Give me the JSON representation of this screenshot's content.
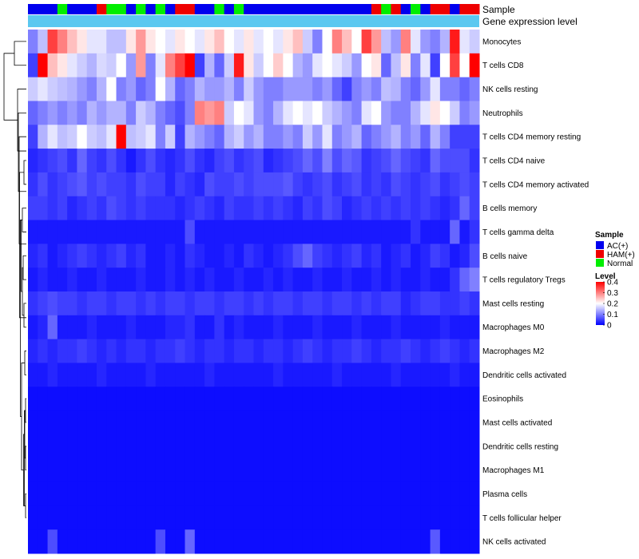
{
  "chart_data": {
    "type": "heatmap",
    "annotation_titles": {
      "sample": "Sample",
      "gene": "Gene expression level"
    },
    "rows": [
      "Monocytes",
      "T cells CD8",
      "NK cells resting",
      "Neutrophils",
      "T cells CD4 memory resting",
      "T cells CD4 naive",
      "T cells CD4 memory activated",
      "B cells memory",
      "T cells gamma delta",
      "B cells naive",
      "T cells regulatory  Tregs",
      "Mast cells resting",
      "Macrophages M0",
      "Macrophages M2",
      "Dendritic cells activated",
      "Eosinophils",
      "Mast cells activated",
      "Dendritic cells resting",
      "Macrophages M1",
      "Plasma cells",
      "T cells follicular helper",
      "NK cells activated"
    ],
    "sample_groups": [
      "AC",
      "AC",
      "AC",
      "Normal",
      "AC",
      "AC",
      "AC",
      "HAM",
      "Normal",
      "Normal",
      "AC",
      "Normal",
      "AC",
      "Normal",
      "AC",
      "HAM",
      "HAM",
      "AC",
      "AC",
      "Normal",
      "AC",
      "Normal",
      "AC",
      "AC",
      "AC",
      "AC",
      "AC",
      "AC",
      "AC",
      "AC",
      "AC",
      "AC",
      "AC",
      "AC",
      "AC",
      "HAM",
      "Normal",
      "HAM",
      "AC",
      "Normal",
      "AC",
      "HAM",
      "HAM",
      "AC",
      "HAM",
      "HAM"
    ],
    "values": [
      [
        0.1,
        0.15,
        0.35,
        0.3,
        0.25,
        0.22,
        0.18,
        0.18,
        0.15,
        0.15,
        0.22,
        0.28,
        0.22,
        0.2,
        0.18,
        0.22,
        0.2,
        0.18,
        0.22,
        0.25,
        0.2,
        0.18,
        0.22,
        0.18,
        0.2,
        0.18,
        0.22,
        0.25,
        0.16,
        0.1,
        0.2,
        0.3,
        0.25,
        0.2,
        0.35,
        0.28,
        0.15,
        0.12,
        0.3,
        0.18,
        0.12,
        0.1,
        0.14,
        0.38,
        0.18,
        0.16
      ],
      [
        0.05,
        0.4,
        0.25,
        0.22,
        0.18,
        0.16,
        0.14,
        0.17,
        0.16,
        0.2,
        0.12,
        0.28,
        0.1,
        0.18,
        0.3,
        0.35,
        0.4,
        0.05,
        0.14,
        0.08,
        0.16,
        0.38,
        0.22,
        0.16,
        0.2,
        0.24,
        0.2,
        0.14,
        0.12,
        0.18,
        0.2,
        0.18,
        0.16,
        0.12,
        0.2,
        0.22,
        0.08,
        0.15,
        0.22,
        0.1,
        0.18,
        0.05,
        0.2,
        0.35,
        0.2,
        0.4
      ],
      [
        0.16,
        0.18,
        0.16,
        0.15,
        0.14,
        0.12,
        0.1,
        0.14,
        0.2,
        0.1,
        0.12,
        0.08,
        0.1,
        0.2,
        0.14,
        0.08,
        0.1,
        0.14,
        0.12,
        0.12,
        0.14,
        0.1,
        0.16,
        0.12,
        0.1,
        0.1,
        0.12,
        0.12,
        0.12,
        0.1,
        0.12,
        0.08,
        0.05,
        0.1,
        0.12,
        0.1,
        0.15,
        0.14,
        0.1,
        0.08,
        0.12,
        0.18,
        0.1,
        0.1,
        0.08,
        0.1
      ],
      [
        0.08,
        0.1,
        0.12,
        0.1,
        0.12,
        0.1,
        0.14,
        0.12,
        0.14,
        0.14,
        0.1,
        0.16,
        0.14,
        0.1,
        0.08,
        0.06,
        0.1,
        0.3,
        0.28,
        0.3,
        0.16,
        0.2,
        0.18,
        0.12,
        0.1,
        0.14,
        0.18,
        0.2,
        0.18,
        0.2,
        0.16,
        0.14,
        0.12,
        0.1,
        0.18,
        0.2,
        0.12,
        0.1,
        0.1,
        0.14,
        0.18,
        0.22,
        0.2,
        0.16,
        0.1,
        0.12
      ],
      [
        0.05,
        0.14,
        0.18,
        0.15,
        0.16,
        0.2,
        0.16,
        0.15,
        0.18,
        0.4,
        0.15,
        0.16,
        0.18,
        0.1,
        0.16,
        0.05,
        0.14,
        0.12,
        0.1,
        0.08,
        0.14,
        0.16,
        0.12,
        0.14,
        0.1,
        0.1,
        0.12,
        0.1,
        0.16,
        0.12,
        0.18,
        0.1,
        0.12,
        0.14,
        0.08,
        0.1,
        0.12,
        0.14,
        0.1,
        0.12,
        0.08,
        0.14,
        0.1,
        0.05,
        0.05,
        0.05
      ],
      [
        0.03,
        0.04,
        0.05,
        0.06,
        0.04,
        0.08,
        0.05,
        0.04,
        0.06,
        0.04,
        0.02,
        0.04,
        0.06,
        0.04,
        0.03,
        0.04,
        0.06,
        0.04,
        0.03,
        0.05,
        0.06,
        0.04,
        0.05,
        0.06,
        0.03,
        0.04,
        0.05,
        0.06,
        0.08,
        0.06,
        0.1,
        0.06,
        0.08,
        0.07,
        0.04,
        0.05,
        0.06,
        0.08,
        0.06,
        0.05,
        0.04,
        0.08,
        0.06,
        0.06,
        0.06,
        0.04
      ],
      [
        0.04,
        0.06,
        0.04,
        0.05,
        0.06,
        0.07,
        0.05,
        0.06,
        0.05,
        0.05,
        0.04,
        0.06,
        0.05,
        0.05,
        0.03,
        0.05,
        0.04,
        0.03,
        0.06,
        0.05,
        0.05,
        0.06,
        0.05,
        0.06,
        0.06,
        0.06,
        0.07,
        0.05,
        0.04,
        0.05,
        0.06,
        0.04,
        0.05,
        0.06,
        0.04,
        0.05,
        0.04,
        0.06,
        0.05,
        0.04,
        0.05,
        0.06,
        0.04,
        0.05,
        0.06,
        0.05
      ],
      [
        0.05,
        0.05,
        0.04,
        0.05,
        0.03,
        0.04,
        0.05,
        0.04,
        0.06,
        0.05,
        0.04,
        0.05,
        0.04,
        0.04,
        0.04,
        0.03,
        0.04,
        0.05,
        0.04,
        0.03,
        0.05,
        0.04,
        0.04,
        0.05,
        0.04,
        0.05,
        0.04,
        0.03,
        0.05,
        0.04,
        0.06,
        0.05,
        0.03,
        0.04,
        0.05,
        0.04,
        0.05,
        0.04,
        0.05,
        0.04,
        0.05,
        0.04,
        0.03,
        0.04,
        0.08,
        0.05
      ],
      [
        0.02,
        0.02,
        0.02,
        0.02,
        0.02,
        0.02,
        0.02,
        0.02,
        0.02,
        0.02,
        0.02,
        0.02,
        0.02,
        0.02,
        0.02,
        0.02,
        0.06,
        0.02,
        0.02,
        0.02,
        0.02,
        0.02,
        0.02,
        0.02,
        0.02,
        0.02,
        0.02,
        0.02,
        0.02,
        0.02,
        0.02,
        0.02,
        0.02,
        0.02,
        0.02,
        0.02,
        0.02,
        0.02,
        0.02,
        0.04,
        0.02,
        0.02,
        0.02,
        0.08,
        0.02,
        0.04
      ],
      [
        0.03,
        0.04,
        0.02,
        0.03,
        0.04,
        0.05,
        0.04,
        0.03,
        0.04,
        0.05,
        0.03,
        0.04,
        0.02,
        0.02,
        0.03,
        0.02,
        0.04,
        0.03,
        0.02,
        0.02,
        0.03,
        0.02,
        0.04,
        0.03,
        0.02,
        0.03,
        0.04,
        0.06,
        0.08,
        0.05,
        0.04,
        0.03,
        0.04,
        0.05,
        0.03,
        0.04,
        0.02,
        0.03,
        0.04,
        0.02,
        0.03,
        0.05,
        0.04,
        0.02,
        0.03,
        0.06
      ],
      [
        0.02,
        0.03,
        0.02,
        0.02,
        0.03,
        0.02,
        0.02,
        0.03,
        0.02,
        0.02,
        0.02,
        0.03,
        0.02,
        0.02,
        0.03,
        0.02,
        0.03,
        0.02,
        0.03,
        0.02,
        0.02,
        0.03,
        0.02,
        0.02,
        0.03,
        0.02,
        0.03,
        0.02,
        0.02,
        0.03,
        0.02,
        0.02,
        0.03,
        0.02,
        0.02,
        0.03,
        0.02,
        0.03,
        0.02,
        0.02,
        0.03,
        0.02,
        0.02,
        0.04,
        0.08,
        0.1
      ],
      [
        0.04,
        0.05,
        0.06,
        0.05,
        0.05,
        0.04,
        0.05,
        0.05,
        0.04,
        0.05,
        0.05,
        0.04,
        0.05,
        0.04,
        0.05,
        0.05,
        0.04,
        0.05,
        0.05,
        0.04,
        0.05,
        0.05,
        0.04,
        0.05,
        0.04,
        0.05,
        0.05,
        0.04,
        0.05,
        0.05,
        0.04,
        0.05,
        0.05,
        0.04,
        0.05,
        0.04,
        0.05,
        0.05,
        0.03,
        0.04,
        0.05,
        0.05,
        0.04,
        0.04,
        0.05,
        0.04
      ],
      [
        0.02,
        0.03,
        0.08,
        0.02,
        0.02,
        0.02,
        0.03,
        0.02,
        0.02,
        0.02,
        0.03,
        0.02,
        0.02,
        0.02,
        0.03,
        0.03,
        0.04,
        0.02,
        0.02,
        0.04,
        0.02,
        0.03,
        0.02,
        0.02,
        0.02,
        0.03,
        0.02,
        0.02,
        0.02,
        0.03,
        0.02,
        0.02,
        0.02,
        0.03,
        0.02,
        0.02,
        0.02,
        0.03,
        0.02,
        0.02,
        0.02,
        0.02,
        0.03,
        0.02,
        0.02,
        0.02
      ],
      [
        0.03,
        0.04,
        0.03,
        0.04,
        0.04,
        0.05,
        0.04,
        0.03,
        0.04,
        0.03,
        0.04,
        0.04,
        0.03,
        0.04,
        0.04,
        0.05,
        0.04,
        0.03,
        0.04,
        0.04,
        0.03,
        0.04,
        0.04,
        0.03,
        0.04,
        0.04,
        0.03,
        0.04,
        0.05,
        0.04,
        0.03,
        0.04,
        0.04,
        0.05,
        0.04,
        0.03,
        0.04,
        0.04,
        0.05,
        0.04,
        0.03,
        0.04,
        0.05,
        0.04,
        0.03,
        0.04
      ],
      [
        0.02,
        0.02,
        0.03,
        0.02,
        0.02,
        0.02,
        0.02,
        0.03,
        0.02,
        0.02,
        0.02,
        0.02,
        0.03,
        0.02,
        0.02,
        0.02,
        0.02,
        0.02,
        0.03,
        0.02,
        0.02,
        0.02,
        0.02,
        0.02,
        0.02,
        0.03,
        0.02,
        0.02,
        0.02,
        0.02,
        0.02,
        0.03,
        0.02,
        0.02,
        0.02,
        0.02,
        0.02,
        0.03,
        0.02,
        0.02,
        0.02,
        0.02,
        0.02,
        0.03,
        0.02,
        0.02
      ],
      [
        0.01,
        0.01,
        0.01,
        0.01,
        0.01,
        0.01,
        0.01,
        0.01,
        0.01,
        0.01,
        0.01,
        0.01,
        0.01,
        0.01,
        0.01,
        0.01,
        0.01,
        0.01,
        0.01,
        0.01,
        0.01,
        0.01,
        0.01,
        0.01,
        0.01,
        0.01,
        0.01,
        0.01,
        0.01,
        0.01,
        0.01,
        0.01,
        0.01,
        0.01,
        0.01,
        0.01,
        0.01,
        0.01,
        0.01,
        0.01,
        0.01,
        0.01,
        0.01,
        0.01,
        0.01,
        0.01
      ],
      [
        0.01,
        0.01,
        0.01,
        0.01,
        0.01,
        0.01,
        0.01,
        0.01,
        0.01,
        0.01,
        0.01,
        0.01,
        0.01,
        0.01,
        0.01,
        0.01,
        0.01,
        0.01,
        0.01,
        0.01,
        0.01,
        0.01,
        0.01,
        0.01,
        0.01,
        0.01,
        0.01,
        0.01,
        0.01,
        0.01,
        0.01,
        0.01,
        0.01,
        0.01,
        0.01,
        0.01,
        0.01,
        0.01,
        0.01,
        0.01,
        0.01,
        0.01,
        0.01,
        0.01,
        0.01,
        0.01
      ],
      [
        0.01,
        0.01,
        0.01,
        0.01,
        0.01,
        0.01,
        0.01,
        0.01,
        0.01,
        0.01,
        0.01,
        0.01,
        0.01,
        0.01,
        0.01,
        0.01,
        0.01,
        0.01,
        0.01,
        0.01,
        0.01,
        0.01,
        0.01,
        0.01,
        0.01,
        0.01,
        0.01,
        0.01,
        0.01,
        0.01,
        0.01,
        0.01,
        0.01,
        0.01,
        0.01,
        0.01,
        0.01,
        0.01,
        0.01,
        0.01,
        0.01,
        0.01,
        0.01,
        0.01,
        0.01,
        0.01
      ],
      [
        0.01,
        0.01,
        0.01,
        0.01,
        0.01,
        0.01,
        0.01,
        0.01,
        0.01,
        0.01,
        0.01,
        0.01,
        0.01,
        0.01,
        0.01,
        0.01,
        0.01,
        0.01,
        0.01,
        0.01,
        0.01,
        0.01,
        0.01,
        0.01,
        0.01,
        0.01,
        0.01,
        0.01,
        0.01,
        0.01,
        0.01,
        0.01,
        0.01,
        0.01,
        0.01,
        0.01,
        0.01,
        0.01,
        0.01,
        0.01,
        0.01,
        0.01,
        0.01,
        0.01,
        0.01,
        0.01
      ],
      [
        0.01,
        0.01,
        0.01,
        0.01,
        0.01,
        0.01,
        0.01,
        0.01,
        0.01,
        0.01,
        0.01,
        0.01,
        0.01,
        0.01,
        0.01,
        0.01,
        0.01,
        0.01,
        0.01,
        0.01,
        0.01,
        0.01,
        0.01,
        0.01,
        0.01,
        0.01,
        0.01,
        0.01,
        0.01,
        0.01,
        0.01,
        0.01,
        0.01,
        0.01,
        0.01,
        0.01,
        0.01,
        0.01,
        0.01,
        0.01,
        0.01,
        0.01,
        0.01,
        0.01,
        0.01,
        0.01
      ],
      [
        0.01,
        0.01,
        0.01,
        0.01,
        0.01,
        0.01,
        0.01,
        0.01,
        0.01,
        0.01,
        0.01,
        0.01,
        0.01,
        0.01,
        0.01,
        0.01,
        0.01,
        0.01,
        0.01,
        0.01,
        0.01,
        0.01,
        0.01,
        0.01,
        0.01,
        0.01,
        0.01,
        0.01,
        0.01,
        0.01,
        0.01,
        0.01,
        0.01,
        0.01,
        0.01,
        0.01,
        0.01,
        0.01,
        0.01,
        0.01,
        0.01,
        0.01,
        0.01,
        0.01,
        0.01,
        0.01
      ],
      [
        0.01,
        0.01,
        0.06,
        0.01,
        0.01,
        0.01,
        0.01,
        0.01,
        0.01,
        0.01,
        0.01,
        0.01,
        0.01,
        0.06,
        0.01,
        0.01,
        0.08,
        0.01,
        0.01,
        0.01,
        0.01,
        0.01,
        0.01,
        0.01,
        0.01,
        0.01,
        0.01,
        0.01,
        0.01,
        0.01,
        0.01,
        0.01,
        0.01,
        0.01,
        0.01,
        0.01,
        0.01,
        0.01,
        0.01,
        0.01,
        0.01,
        0.07,
        0.01,
        0.01,
        0.01,
        0.01
      ]
    ],
    "legend": {
      "sample_title": "Sample",
      "sample_items": [
        {
          "key": "AC",
          "label": "AC(+)",
          "color": "#0000ee"
        },
        {
          "key": "HAM",
          "label": "HAM(+)",
          "color": "#ee0000"
        },
        {
          "key": "Normal",
          "label": "Normal",
          "color": "#00ee00"
        }
      ],
      "level_title": "Level",
      "level_ticks": [
        {
          "value": 0.4,
          "label": "0.4"
        },
        {
          "value": 0.3,
          "label": "0.3"
        },
        {
          "value": 0.2,
          "label": "0.2"
        },
        {
          "value": 0.1,
          "label": "0.1"
        },
        {
          "value": 0,
          "label": "0"
        }
      ]
    },
    "colors": {
      "low": "#0000ff",
      "mid": "#ffffff",
      "high": "#ff0000",
      "gene_bar": "#5bc8f0"
    },
    "value_range": [
      0,
      0.4
    ],
    "mid_value": 0.2
  }
}
